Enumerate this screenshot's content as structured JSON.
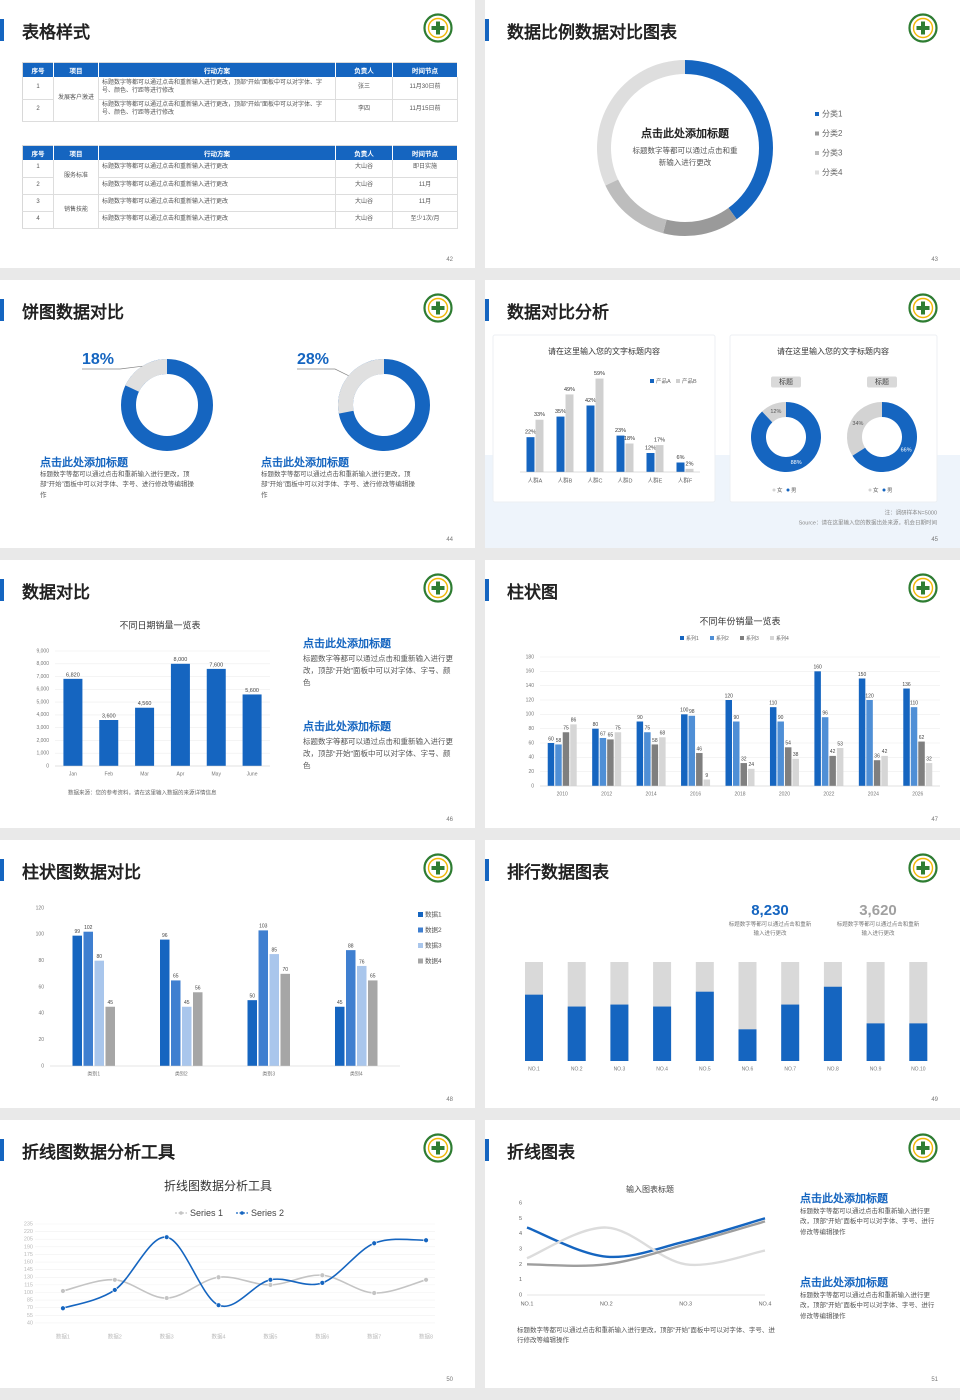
{
  "slides": [
    {
      "title": "表格样式",
      "page": 42,
      "tables": [
        {
          "header": [
            "序号",
            "项目",
            "行动方案",
            "负责人",
            "时间节点"
          ],
          "groups": [
            {
              "name": "发展客户激进",
              "rows": [
                [
                  "1",
                  "标题数字等都可以通过点击和重新输入进行更改，顶部“开始”面板中可以对字体、字号、颜色、行距等进行修改",
                  "张三",
                  "11月30日前"
                ],
                [
                  "2",
                  "标题数字等都可以通过点击和重新输入进行更改，顶部“开始”面板中可以对字体、字号、颜色、行距等进行修改",
                  "李四",
                  "11月15日前"
                ]
              ]
            }
          ]
        },
        {
          "header": [
            "序号",
            "项目",
            "行动方案",
            "负责人",
            "时间节点"
          ],
          "groups": [
            {
              "name": "服务标准",
              "rows": [
                [
                  "1",
                  "标题数字等都可以通过点击和重新输入进行更改",
                  "大山谷",
                  "即日实施"
                ],
                [
                  "2",
                  "标题数字等都可以通过点击和重新输入进行更改",
                  "大山谷",
                  "11月"
                ]
              ]
            },
            {
              "name": "销售技能",
              "rows": [
                [
                  "3",
                  "标题数字等都可以通过点击和重新输入进行更改",
                  "大山谷",
                  "11月"
                ],
                [
                  "4",
                  "标题数字等都可以通过点击和重新输入进行更改",
                  "大山谷",
                  "至少1次/月"
                ]
              ]
            }
          ]
        }
      ]
    },
    {
      "title": "数据比例数据对比图表",
      "page": 43,
      "chart": {
        "type": "donut",
        "title": "点击此处添加标题",
        "subtitle": "标题数字等都可以通过点击和重新输入进行更改",
        "categories": [
          "分类1",
          "分类2",
          "分类3",
          "分类4"
        ],
        "values": [
          40,
          14,
          14,
          32
        ],
        "colors": [
          "#1565c0",
          "#9a9a9a",
          "#bdbdbd",
          "#dedede"
        ]
      }
    },
    {
      "title": "饼图数据对比",
      "page": 44,
      "items": [
        {
          "chart": {
            "type": "donut",
            "value": 18,
            "value_label": "18%"
          },
          "heading": "点击此处添加标题",
          "text": "标题数字等都可以通过点击和重新输入进行更改，顶部“开始”面板中可以对字体、字号、进行修改等编辑操作"
        },
        {
          "chart": {
            "type": "donut",
            "value": 28,
            "value_label": "28%"
          },
          "heading": "点击此处添加标题",
          "text": "标题数字等都可以通过点击和重新输入进行更改，顶部“开始”面板中可以对字体、字号、进行修改等编辑操作"
        }
      ]
    },
    {
      "title": "数据对比分析",
      "page": 45,
      "bar_chart": {
        "type": "bar",
        "title": "请在这里输入您的文字标题内容",
        "categories": [
          "人群A",
          "人群B",
          "人群C",
          "人群D",
          "人群E",
          "人群F"
        ],
        "ylim": [
          0,
          60
        ],
        "series": [
          {
            "name": "产品A",
            "color": "#1565c0",
            "values": [
              22,
              35,
              42,
              23,
              12,
              6
            ],
            "value_labels": [
              "22%",
              "35%",
              "42%",
              "23%",
              "12%",
              "6%"
            ]
          },
          {
            "name": "产品B",
            "color": "#d0d0d0",
            "values": [
              33,
              49,
              59,
              18,
              17,
              2
            ],
            "value_labels": [
              "33%",
              "49%",
              "59%",
              "18%",
              "17%",
              "2%"
            ]
          }
        ]
      },
      "donut_card": {
        "title": "请在这里输入您的文字标题内容",
        "legend": [
          {
            "name": "女",
            "color": "#d3d3d3"
          },
          {
            "name": "男",
            "color": "#1565c0"
          }
        ],
        "charts": [
          {
            "type": "donut",
            "label": "标题",
            "values": [
              12,
              88
            ],
            "value_labels": [
              "12%",
              "88%"
            ]
          },
          {
            "type": "donut",
            "label": "标题",
            "values": [
              34,
              66
            ],
            "value_labels": [
              "34%",
              "66%"
            ]
          }
        ]
      },
      "notes": [
        "注：调研样本N=5000",
        "Source：请在这里输入您的数据出处来源，机会日期时间"
      ]
    },
    {
      "title": "数据对比",
      "page": 46,
      "chart": {
        "type": "bar",
        "title": "不同日期销量一览表",
        "categories": [
          "Jan",
          "Feb",
          "Mar",
          "Apr",
          "May",
          "June"
        ],
        "values": [
          6820,
          3600,
          4560,
          8000,
          7600,
          5600
        ],
        "value_labels": [
          "6,820",
          "3,600",
          "4,560",
          "8,000",
          "7,600",
          "5,600"
        ],
        "color": "#1565c0",
        "ylim": [
          0,
          9000
        ],
        "yticks": [
          0,
          {
            "value": 1000,
            "label": "1,000"
          },
          {
            "value": 2000,
            "label": "2,000"
          },
          {
            "value": 3000,
            "label": "3,000"
          },
          {
            "value": 4000,
            "label": "4,000"
          },
          {
            "value": 5000,
            "label": "5,000"
          },
          {
            "value": 6000,
            "label": "6,000"
          },
          {
            "value": 7000,
            "label": "7,000"
          },
          {
            "value": 8000,
            "label": "8,000"
          },
          {
            "value": 9000,
            "label": "9,000"
          }
        ],
        "grid": true,
        "source": "数据来源：您的参考资料，请在这里输入数据的来源详情信息"
      },
      "blocks": [
        {
          "heading": "点击此处添加标题",
          "text": "标题数字等都可以通过点击和重新输入进行更改，顶部“开始”面板中可以对字体、字号、颜色"
        },
        {
          "heading": "点击此处添加标题",
          "text": "标题数字等都可以通过点击和重新输入进行更改，顶部“开始”面板中可以对字体、字号、颜色"
        }
      ]
    },
    {
      "title": "柱状图",
      "page": 47,
      "chart": {
        "type": "bar",
        "title": "不同年份销量一览表",
        "categories": [
          "2010",
          "2012",
          "2014",
          "2016",
          "2018",
          "2020",
          "2022",
          "2024",
          "2026"
        ],
        "ylim": [
          0,
          180
        ],
        "yticks": [
          0,
          20,
          40,
          60,
          80,
          100,
          120,
          140,
          160,
          180
        ],
        "grid": true,
        "series": [
          {
            "name": "系列1",
            "color": "#1565c0",
            "values": [
              60,
              80,
              90,
              100,
              120,
              110,
              160,
              150,
              136
            ]
          },
          {
            "name": "系列2",
            "color": "#4f8fd6",
            "values": [
              58,
              67,
              75,
              98,
              90,
              90,
              96,
              120,
              110
            ]
          },
          {
            "name": "系列3",
            "color": "#7f7f7f",
            "values": [
              75,
              65,
              58,
              46,
              32,
              54,
              42,
              36,
              62
            ]
          },
          {
            "name": "系列4",
            "color": "#d6d6d6",
            "values": [
              86,
              75,
              68,
              9,
              24,
              38,
              53,
              42,
              32
            ]
          }
        ]
      }
    },
    {
      "title": "柱状图数据对比",
      "page": 48,
      "chart": {
        "type": "bar",
        "categories": [
          "类别1",
          "类别2",
          "类别3",
          "类别4"
        ],
        "ylim": [
          0,
          120
        ],
        "yticks": [
          0,
          20,
          40,
          60,
          80,
          100,
          120
        ],
        "legend": "right",
        "series": [
          {
            "name": "数据1",
            "color": "#1565c0",
            "values": [
              99,
              96,
              50,
              45
            ]
          },
          {
            "name": "数据2",
            "color": "#3f7fd0",
            "values": [
              102,
              65,
              103,
              88
            ]
          },
          {
            "name": "数据3",
            "color": "#a9c6ec",
            "values": [
              80,
              45,
              85,
              76
            ]
          },
          {
            "name": "数据4",
            "color": "#a6a6a6",
            "values": [
              45,
              56,
              70,
              65
            ]
          }
        ]
      }
    },
    {
      "title": "排行数据图表",
      "page": 49,
      "stats": [
        {
          "value": "8,230",
          "text": "标题数字等都可以通过点击和重新输入进行更改"
        },
        {
          "value": "3,620",
          "text": "标题数字等都可以通过点击和重新输入进行更改"
        }
      ],
      "chart": {
        "type": "bar",
        "categories": [
          "NO.1",
          "NO.2",
          "NO.3",
          "NO.4",
          "NO.5",
          "NO.6",
          "NO.7",
          "NO.8",
          "NO.9",
          "NO.10"
        ],
        "values": [
          67,
          55,
          57,
          55,
          70,
          32,
          57,
          75,
          38,
          38
        ],
        "ylim": [
          0,
          100
        ],
        "color": "#1565c0"
      }
    },
    {
      "title": "折线图数据分析工具",
      "page": 50,
      "chart": {
        "type": "line",
        "title": "折线图数据分析工具",
        "categories": [
          "数据1",
          "数据2",
          "数据3",
          "数据4",
          "数据5",
          "数据6",
          "数据7",
          "数据8"
        ],
        "ylim": [
          30,
          235
        ],
        "yticks": [
          40,
          55,
          70,
          85,
          100,
          115,
          130,
          145,
          160,
          175,
          190,
          205,
          220,
          235
        ],
        "grid": true,
        "series": [
          {
            "name": "Series 1",
            "color": "#c4c4c4",
            "values": [
              103,
              125,
              89,
              130,
              115,
              134,
              99,
              125
            ]
          },
          {
            "name": "Series 2",
            "color": "#1565c0",
            "values": [
              69,
              105,
              209,
              75,
              125,
              119,
              197,
              203
            ]
          }
        ]
      }
    },
    {
      "title": "折线图表",
      "page": 51,
      "chart": {
        "type": "line",
        "title": "输入图表标题",
        "categories": [
          "NO.1",
          "NO.2",
          "NO.3",
          "NO.4"
        ],
        "ylim": [
          0,
          6
        ],
        "yticks": [
          0,
          1,
          2,
          3,
          4,
          5,
          6
        ],
        "series": [
          {
            "color": "#1565c0",
            "values": [
              4.4,
              2.5,
              3.5,
              5
            ]
          },
          {
            "color": "#dcdcdc",
            "values": [
              2.4,
              4.4,
              2,
              2.9
            ]
          },
          {
            "color": "#9e9e9e",
            "values": [
              2,
              2,
              3.3,
              4.8
            ]
          }
        ]
      },
      "blocks": [
        {
          "heading": "点击此处添加标题",
          "text": "标题数字等都可以通过点击和重新输入进行更改，顶部“开始”面板中可以对字体、字号、进行修改等编辑操作"
        },
        {
          "heading": "点击此处添加标题",
          "text": "标题数字等都可以通过点击和重新输入进行更改，顶部“开始”面板中可以对字体、字号、进行修改等编辑操作"
        }
      ],
      "note": "标题数字等都可以通过点击和重新输入进行更改，顶部“开始”面板中可以对字体、字号、进行修改等编辑操作"
    }
  ]
}
